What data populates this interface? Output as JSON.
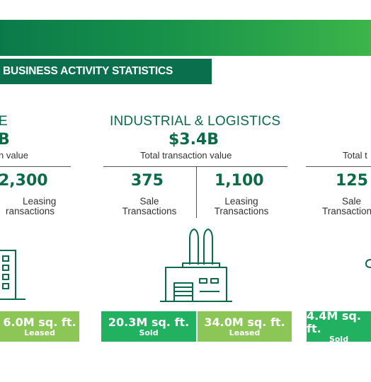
{
  "section_title": "BUSINESS ACTIVITY STATISTICS",
  "colors": {
    "dark_green": "#0a6f4d",
    "sold_green": "#22b061",
    "leased_green": "#8cc656"
  },
  "left": {
    "category_partial": "E",
    "value_partial": "B",
    "value_label_partial": "n value",
    "leasing_count_partial": "2,300",
    "leasing_label_line1": "Leasing",
    "leasing_label_line2_partial": "ransactions",
    "leased_amount_partial": "6.0M sq. ft.",
    "leased_kind": "Leased",
    "icon": "office-building-icon"
  },
  "industrial": {
    "category": "INDUSTRIAL & LOGISTICS",
    "value": "$3.4B",
    "value_label": "Total transaction value",
    "sale_count": "375",
    "sale_label_line1": "Sale",
    "sale_label_line2": "Transactions",
    "leasing_count": "1,100",
    "leasing_label_line1": "Leasing",
    "leasing_label_line2": "Transactions",
    "sold_amount": "20.3M sq. ft.",
    "sold_kind": "Sold",
    "leased_amount": "34.0M sq. ft.",
    "leased_kind": "Leased",
    "icon": "factory-icon"
  },
  "right": {
    "value_label_partial": "Total t",
    "sale_count_partial": "125",
    "sale_label_line1": "Sale",
    "sale_label_line2_partial": "Transaction",
    "sold_amount": "4.4M sq. ft.",
    "sold_kind": "Sold",
    "icon": "retail-icon"
  }
}
